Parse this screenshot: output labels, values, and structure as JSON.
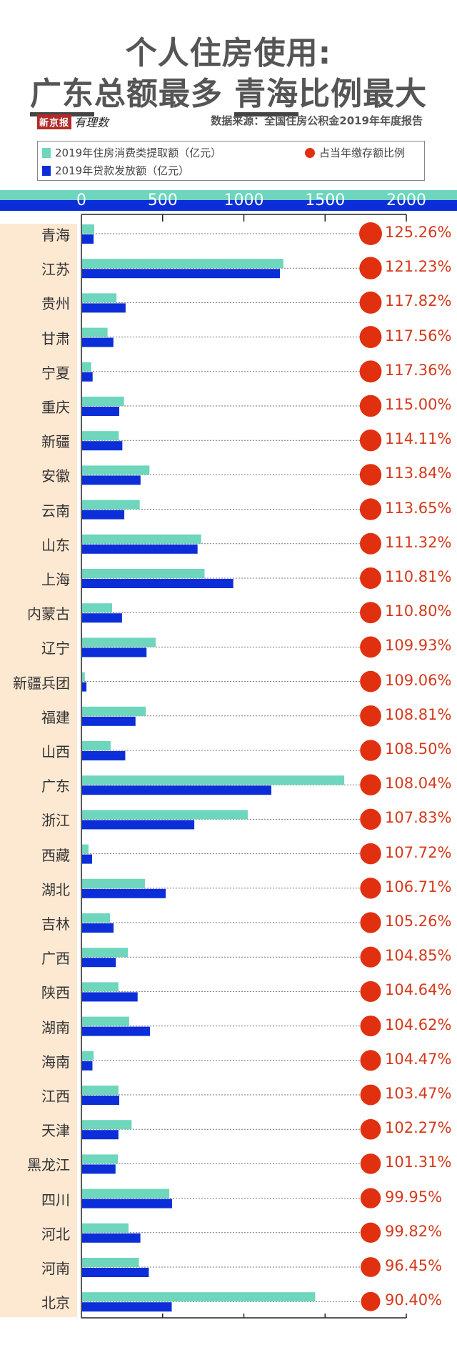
{
  "header": {
    "title_line1": "个人住房使用:",
    "title_line2_part1": "广东",
    "title_line2_part2": "总额最多 ",
    "title_line2_part3": "青海",
    "title_line2_part4": "比例最大",
    "logo_box": "新京报",
    "logo_script": "有理数",
    "source": "数据来源：全国住房公积金2019年年度报告"
  },
  "colors": {
    "withdrawal": "#6dd6bc",
    "loans": "#0c2ed8",
    "ratio_dot": "#e1300f",
    "ratio_text": "#d43a1c",
    "label_bg": "#fde8d2"
  },
  "chart_data": {
    "type": "bar",
    "orientation": "horizontal",
    "title": "个人住房使用: 广东总额最多 青海比例最大",
    "xlabel": "",
    "ylabel": "",
    "xlim": [
      0,
      2000
    ],
    "x_ticks": [
      "0",
      "500",
      "1000",
      "1500",
      "2000"
    ],
    "legend": [
      {
        "name": "2019年住房消费类提取额（亿元）",
        "marker": "square",
        "color": "#6dd6bc"
      },
      {
        "name": "2019年贷款发放额（亿元）",
        "marker": "square",
        "color": "#0c2ed8"
      },
      {
        "name": "占当年缴存额比例",
        "marker": "circle",
        "color": "#e1300f"
      }
    ],
    "legend_position": "top",
    "categories": [
      "青海",
      "江苏",
      "贵州",
      "甘肃",
      "宁夏",
      "重庆",
      "新疆",
      "安徽",
      "云南",
      "山东",
      "上海",
      "内蒙古",
      "辽宁",
      "新疆兵团",
      "福建",
      "山西",
      "广东",
      "浙江",
      "西藏",
      "湖北",
      "吉林",
      "广西",
      "陕西",
      "湖南",
      "海南",
      "江西",
      "天津",
      "黑龙江",
      "四川",
      "河北",
      "河南",
      "北京"
    ],
    "series": [
      {
        "name": "2019年住房消费类提取额（亿元）",
        "values": [
          79,
          1243,
          216,
          161,
          60,
          262,
          230,
          419,
          359,
          737,
          758,
          189,
          457,
          21,
          396,
          180,
          1618,
          1024,
          44,
          391,
          176,
          286,
          228,
          294,
          75,
          228,
          309,
          225,
          541,
          290,
          354,
          1439
        ]
      },
      {
        "name": "2019年贷款发放额（亿元）",
        "values": [
          75,
          1222,
          272,
          197,
          69,
          233,
          252,
          364,
          264,
          715,
          935,
          250,
          401,
          31,
          333,
          270,
          1169,
          695,
          66,
          519,
          198,
          212,
          346,
          422,
          68,
          233,
          228,
          210,
          558,
          363,
          415,
          556
        ]
      }
    ],
    "ratio_labels": [
      "125.26%",
      "121.23%",
      "117.82%",
      "117.56%",
      "117.36%",
      "115.00%",
      "114.11%",
      "113.84%",
      "113.65%",
      "111.32%",
      "110.81%",
      "110.80%",
      "109.93%",
      "109.06%",
      "108.81%",
      "108.50%",
      "108.04%",
      "107.83%",
      "107.72%",
      "106.71%",
      "105.26%",
      "104.85%",
      "104.64%",
      "104.62%",
      "104.47%",
      "103.47%",
      "102.27%",
      "101.31%",
      "99.95%",
      "99.82%",
      "96.45%",
      "90.40%"
    ],
    "ratio_values": [
      125.26,
      121.23,
      117.82,
      117.56,
      117.36,
      115.0,
      114.11,
      113.84,
      113.65,
      111.32,
      110.81,
      110.8,
      109.93,
      109.06,
      108.81,
      108.5,
      108.04,
      107.83,
      107.72,
      106.71,
      105.26,
      104.85,
      104.64,
      104.62,
      104.47,
      103.47,
      102.27,
      101.31,
      99.95,
      99.82,
      96.45,
      90.4
    ],
    "grid": false
  }
}
